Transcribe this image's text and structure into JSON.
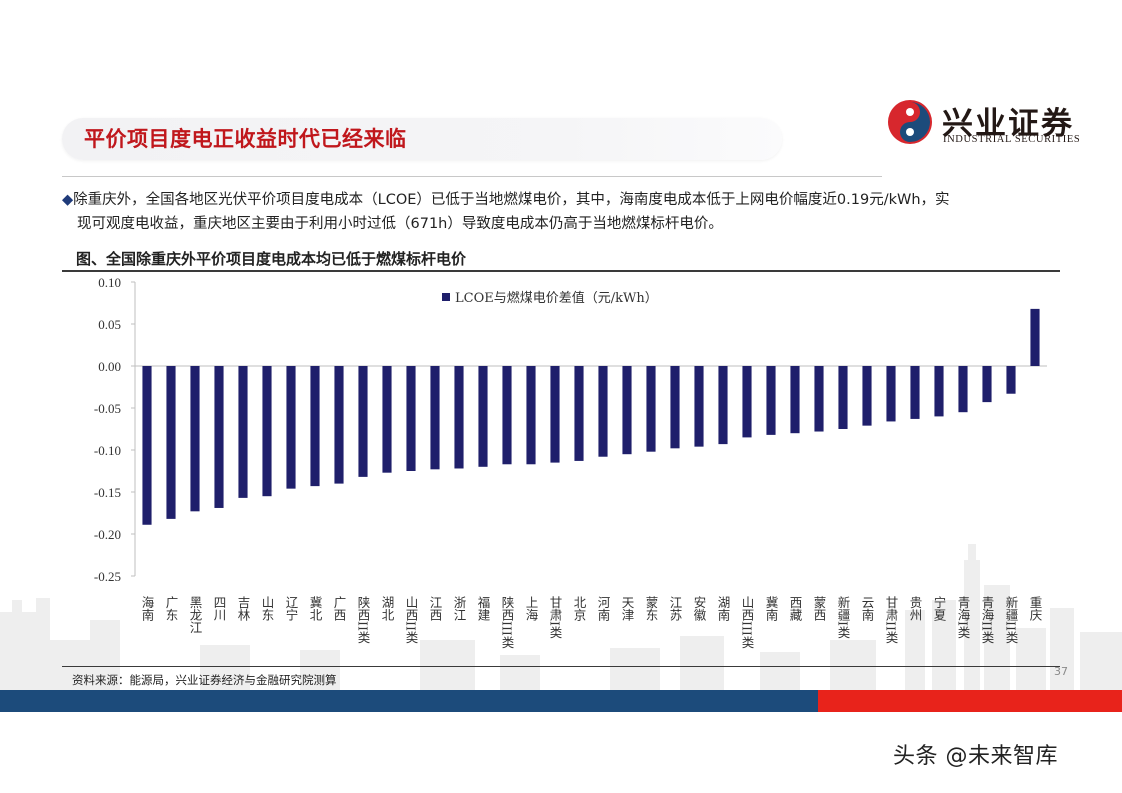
{
  "header": {
    "title": "平价项目度电正收益时代已经来临",
    "logo_cn": "兴业证券",
    "logo_en": "INDUSTRIAL SECURITIES"
  },
  "bullet": {
    "line1": "除重庆外，全国各地区光伏平价项目度电成本（LCOE）已低于当地燃煤电价，其中，海南度电成本低于上网电价幅度近0.19元/kWh，实",
    "line2": "现可观度电收益，重庆地区主要由于利用小时过低（671h）导致度电成本仍高于当地燃煤标杆电价。"
  },
  "figure_title": "图、全国除重庆外平价项目度电成本均已低于燃煤标杆电价",
  "chart_data": {
    "type": "bar",
    "title": "",
    "xlabel": "",
    "ylabel": "",
    "ylim": [
      -0.25,
      0.1
    ],
    "y_ticks": [
      "0.10",
      "0.05",
      "0.00",
      "-0.05",
      "-0.10",
      "-0.15",
      "-0.20",
      "-0.25"
    ],
    "legend_position": "top-center",
    "grid": false,
    "series": [
      {
        "name": "LCOE与燃煤电价差值（元/kWh）",
        "color": "#1f1f6b",
        "values": [
          -0.189,
          -0.182,
          -0.173,
          -0.169,
          -0.157,
          -0.155,
          -0.146,
          -0.143,
          -0.14,
          -0.132,
          -0.127,
          -0.125,
          -0.123,
          -0.122,
          -0.12,
          -0.117,
          -0.117,
          -0.115,
          -0.113,
          -0.108,
          -0.105,
          -0.102,
          -0.098,
          -0.096,
          -0.093,
          -0.085,
          -0.082,
          -0.08,
          -0.078,
          -0.075,
          -0.071,
          -0.066,
          -0.063,
          -0.06,
          -0.055,
          -0.043,
          -0.033,
          0.068
        ]
      }
    ],
    "categories": [
      "海南",
      "广东",
      "黑龙江",
      "四川",
      "吉林",
      "山东",
      "辽宁",
      "冀北",
      "广西",
      "陕西II类",
      "湖北",
      "山西II类",
      "江西",
      "浙江",
      "福建",
      "陕西III类",
      "上海",
      "甘肃I类",
      "北京",
      "河南",
      "天津",
      "蒙东",
      "江苏",
      "安徽",
      "湖南",
      "山西III类",
      "冀南",
      "西藏",
      "蒙西",
      "新疆I类",
      "云南",
      "甘肃II类",
      "贵州",
      "宁夏",
      "青海I类",
      "青海II类",
      "新疆II类",
      "重庆"
    ]
  },
  "footer": {
    "source": "资料来源：能源局，兴业证券经济与金融研究院测算",
    "page_number": "37",
    "watermark": "头条 @未来智库"
  },
  "colors": {
    "title_red": "#c0171c",
    "bar_navy": "#1f1f6b",
    "band_blue": "#1c4b7b",
    "band_red": "#e8231b",
    "skyline_gray": "#eeeeee"
  }
}
